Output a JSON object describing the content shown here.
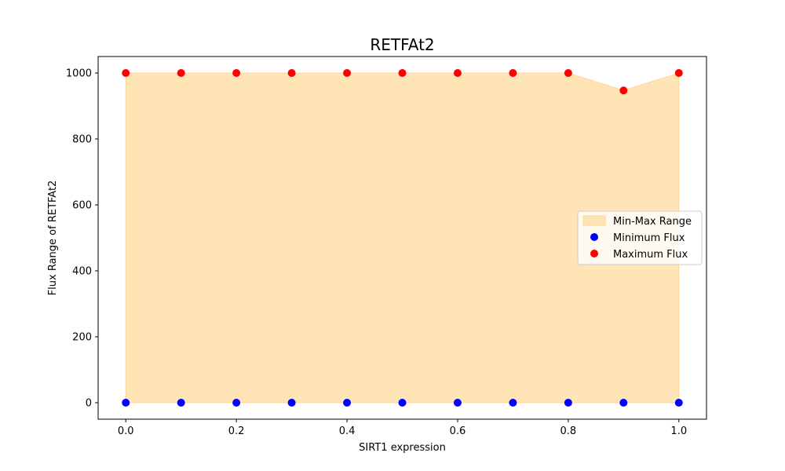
{
  "chart_data": {
    "type": "scatter",
    "title": "RETFAt2",
    "xlabel": "SIRT1 expression",
    "ylabel": "Flux Range of RETFAt2",
    "xlim": [
      -0.05,
      1.05
    ],
    "ylim": [
      -50,
      1050
    ],
    "x_ticks": [
      0.0,
      0.2,
      0.4,
      0.6,
      0.8,
      1.0
    ],
    "x_tick_labels": [
      "0.0",
      "0.2",
      "0.4",
      "0.6",
      "0.8",
      "1.0"
    ],
    "y_ticks": [
      0,
      200,
      400,
      600,
      800,
      1000
    ],
    "y_tick_labels": [
      "0",
      "200",
      "400",
      "600",
      "800",
      "1000"
    ],
    "x": [
      0.0,
      0.1,
      0.2,
      0.3,
      0.4,
      0.5,
      0.6,
      0.7,
      0.8,
      0.9,
      1.0
    ],
    "grid": false,
    "legend_position": "center-right",
    "range_band": {
      "name": "Min-Max Range",
      "color": "#FFE4B5",
      "edge_color": "#FFD59A"
    },
    "series": [
      {
        "name": "Minimum Flux",
        "color": "#0000FF",
        "values": [
          0,
          0,
          0,
          0,
          0,
          0,
          0,
          0,
          0,
          0,
          0
        ]
      },
      {
        "name": "Maximum Flux",
        "color": "#FF0000",
        "values": [
          1000,
          1000,
          1000,
          1000,
          1000,
          1000,
          1000,
          1000,
          1000,
          947,
          1000
        ]
      }
    ]
  }
}
